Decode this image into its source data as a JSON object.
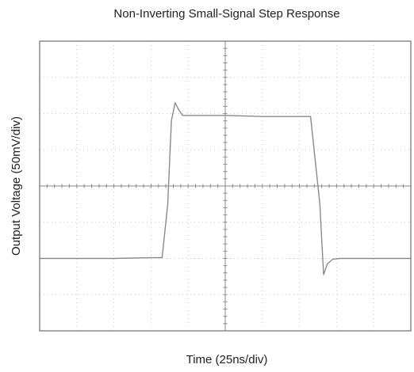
{
  "chart_data": {
    "type": "line",
    "title": "Non-Inverting Small-Signal Step Response",
    "xlabel": "Time (25ns/div)",
    "ylabel": "Output Voltage (50mV/div)",
    "xlim": [
      0,
      10
    ],
    "ylim": [
      -4,
      4
    ],
    "x_divisions": 10,
    "y_divisions": 8,
    "grid": true,
    "series": [
      {
        "values_x": [
          0,
          0.5,
          1,
          2,
          3,
          3.3,
          3.45,
          3.55,
          3.65,
          3.75,
          3.85,
          4.0,
          4.5,
          5,
          6,
          7,
          7.3,
          7.55,
          7.65,
          7.75,
          7.9,
          8.1,
          8.5,
          9,
          10
        ],
        "values_y": [
          -2,
          -2,
          -2,
          -2,
          -1.98,
          -1.98,
          -0.5,
          1.8,
          2.3,
          2.1,
          1.95,
          1.95,
          1.95,
          1.95,
          1.92,
          1.92,
          1.92,
          -0.5,
          -2.45,
          -2.15,
          -2.02,
          -2.0,
          -2.0,
          -2.0,
          -2.0
        ]
      }
    ]
  },
  "colors": {
    "trace": "#8a8a8a",
    "frame": "#6e6e6e",
    "grid": "#c8c8c8",
    "center_axis": "#8a8a8a"
  }
}
